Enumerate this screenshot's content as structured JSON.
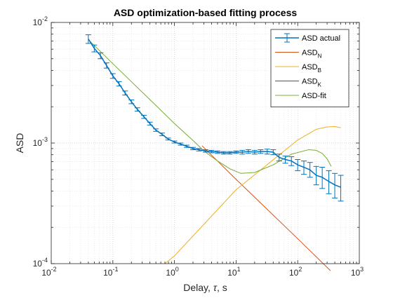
{
  "chart_data": {
    "type": "line",
    "title": "ASD optimization-based fitting process",
    "xlabel_prefix": "Delay, ",
    "xlabel_symbol": "τ",
    "xlabel_suffix": ", s",
    "ylabel": "ASD",
    "xscale": "log",
    "yscale": "log",
    "xlim": [
      0.01,
      1000
    ],
    "ylim": [
      0.0001,
      0.01
    ],
    "grid": "major and minor, dotted",
    "legend_position": "top-right",
    "x_ticks": [
      {
        "value": 0.01,
        "base": "10",
        "exp": "-2"
      },
      {
        "value": 0.1,
        "base": "10",
        "exp": "-1"
      },
      {
        "value": 1,
        "base": "10",
        "exp": "0"
      },
      {
        "value": 10,
        "base": "10",
        "exp": "1"
      },
      {
        "value": 100,
        "base": "10",
        "exp": "2"
      },
      {
        "value": 1000,
        "base": "10",
        "exp": "3"
      }
    ],
    "y_ticks": [
      {
        "value": 0.0001,
        "base": "10",
        "exp": "-4"
      },
      {
        "value": 0.001,
        "base": "10",
        "exp": "-3"
      },
      {
        "value": 0.01,
        "base": "10",
        "exp": "-2"
      }
    ],
    "series": [
      {
        "name": "ASD actual",
        "name_main": "ASD actual",
        "name_sub": "",
        "kind": "errorbar",
        "color": "#0072bd",
        "x": [
          0.04,
          0.05,
          0.063,
          0.079,
          0.1,
          0.126,
          0.158,
          0.2,
          0.25,
          0.32,
          0.4,
          0.5,
          0.63,
          0.79,
          1.0,
          1.26,
          1.58,
          2.0,
          2.5,
          3.2,
          4.0,
          5.0,
          6.3,
          7.9,
          10,
          12.6,
          15.8,
          20,
          25,
          32,
          40,
          50,
          63,
          79,
          100,
          126,
          158,
          200,
          250,
          320,
          400,
          500
        ],
        "y": [
          0.0073,
          0.0061,
          0.0053,
          0.0044,
          0.0036,
          0.0031,
          0.0026,
          0.0022,
          0.0019,
          0.00165,
          0.00145,
          0.00128,
          0.00118,
          0.00108,
          0.00102,
          0.00098,
          0.00094,
          0.0009,
          0.00088,
          0.00086,
          0.00085,
          0.00084,
          0.00083,
          0.00083,
          0.00084,
          0.00084,
          0.00085,
          0.00084,
          0.00085,
          0.00085,
          0.00084,
          0.00076,
          0.00073,
          0.00071,
          0.00066,
          0.00063,
          0.0006,
          0.00054,
          0.00052,
          0.00048,
          0.00045,
          0.00043
        ],
        "yerr_low": [
          0.0006,
          0.0004,
          0.0003,
          0.00022,
          0.00016,
          0.00013,
          0.0001,
          8e-05,
          6e-05,
          5e-05,
          4e-05,
          3e-05,
          3e-05,
          2e-05,
          2e-05,
          2e-05,
          2e-05,
          2e-05,
          2e-05,
          2e-05,
          2e-05,
          2e-05,
          2e-05,
          2e-05,
          2e-05,
          3e-05,
          3e-05,
          3e-05,
          3e-05,
          4e-05,
          4e-05,
          5e-05,
          5e-05,
          6e-05,
          7e-05,
          8e-05,
          8e-05,
          9e-05,
          0.0001,
          0.0001,
          0.0001,
          0.0001
        ],
        "yerr_high": [
          0.0006,
          0.0004,
          0.0003,
          0.00022,
          0.00016,
          0.00013,
          0.0001,
          8e-05,
          6e-05,
          5e-05,
          4e-05,
          3e-05,
          3e-05,
          2e-05,
          2e-05,
          2e-05,
          2e-05,
          2e-05,
          2e-05,
          2e-05,
          2e-05,
          2e-05,
          2e-05,
          2e-05,
          2e-05,
          3e-05,
          3e-05,
          3e-05,
          3e-05,
          4e-05,
          4e-05,
          5e-05,
          5e-05,
          6e-05,
          7e-05,
          8e-05,
          9e-05,
          0.0001,
          0.00011,
          0.00011,
          0.00011,
          0.00011
        ]
      },
      {
        "name": "ASD_N",
        "name_main": "ASD",
        "name_sub": "N",
        "kind": "line",
        "color": "#d95319",
        "x": [
          2.8,
          10,
          100,
          340
        ],
        "y": [
          0.00095,
          0.0005,
          0.000161,
          8.75e-05
        ]
      },
      {
        "name": "ASD_B",
        "name_main": "ASD",
        "name_sub": "B",
        "kind": "line",
        "color": "#edb120",
        "x": [
          0.7,
          1,
          10,
          100,
          200,
          300,
          400,
          500
        ],
        "y": [
          0.0001,
          0.000116,
          0.00041,
          0.00106,
          0.0013,
          0.00136,
          0.00137,
          0.00134
        ]
      },
      {
        "name": "ASD_K",
        "name_main": "ASD",
        "name_sub": "K",
        "kind": "line",
        "color": "#7e2f8e",
        "x": [],
        "y": []
      },
      {
        "name": "ASD-fit",
        "name_main": "ASD-fit",
        "name_sub": "",
        "kind": "line",
        "color": "#77ac30",
        "x": [
          0.04,
          0.1,
          0.5,
          1,
          2,
          3,
          5,
          8,
          12,
          20,
          40,
          80,
          150,
          200,
          250,
          300,
          350
        ],
        "y": [
          0.0072,
          0.00455,
          0.00205,
          0.00145,
          0.00105,
          0.00086,
          0.00071,
          0.00061,
          0.00056,
          0.00057,
          0.00066,
          0.00081,
          0.00088,
          0.00087,
          0.00082,
          0.00074,
          0.00064
        ]
      }
    ]
  }
}
